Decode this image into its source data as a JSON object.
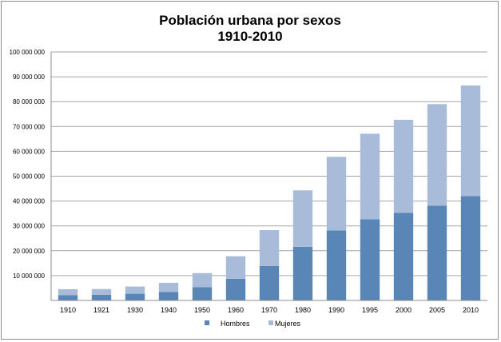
{
  "chart_data": {
    "type": "bar",
    "stacked": true,
    "title": [
      "Población urbana por sexos",
      "1910-2010"
    ],
    "categories": [
      "1910",
      "1921",
      "1930",
      "1940",
      "1950",
      "1960",
      "1970",
      "1980",
      "1990",
      "1995",
      "2000",
      "2005",
      "2010"
    ],
    "series": [
      {
        "name": "Hombres",
        "color": "#5a85b7",
        "values": [
          2100000,
          2300000,
          2700000,
          3400000,
          5300000,
          8700000,
          13900000,
          21600000,
          28200000,
          32700000,
          35300000,
          38100000,
          42000000
        ]
      },
      {
        "name": "Mujeres",
        "color": "#a8bcda",
        "values": [
          2400000,
          2300000,
          2900000,
          3700000,
          5700000,
          9100000,
          14400000,
          22700000,
          29600000,
          34400000,
          37400000,
          40900000,
          44500000
        ]
      }
    ],
    "ylim": [
      0,
      100000000
    ],
    "yticks": [
      {
        "value": 10000000,
        "label": "10 000 000"
      },
      {
        "value": 20000000,
        "label": "20 000 000"
      },
      {
        "value": 30000000,
        "label": "30 000 000"
      },
      {
        "value": 40000000,
        "label": "40 000 000"
      },
      {
        "value": 50000000,
        "label": "50 000 000"
      },
      {
        "value": 60000000,
        "label": "60 000 000"
      },
      {
        "value": 70000000,
        "label": "70 000 000"
      },
      {
        "value": 80000000,
        "label": "80 000 000"
      },
      {
        "value": 90000000,
        "label": "90 000 000"
      },
      {
        "value": 100000000,
        "label": "100 000 000"
      }
    ],
    "grid": true,
    "legend": "bottom",
    "gridColor": "#a6a6a6",
    "axisColor": "#8c8c8c"
  }
}
